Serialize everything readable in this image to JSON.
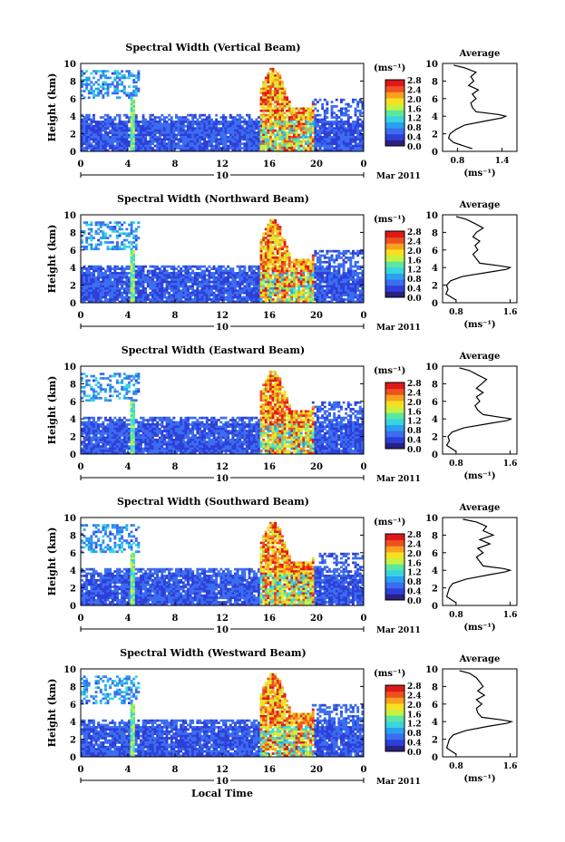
{
  "figure": {
    "x_axis_label": "Local Time",
    "date_label": "10",
    "month_label": "Mar 2011",
    "colorbar_unit": "(ms⁻¹)",
    "profile_title": "Average",
    "profile_xlabel": "(ms⁻¹)",
    "colorbar_colors": [
      "#2a2080",
      "#2d3fd8",
      "#3b6df0",
      "#2aa0f0",
      "#3ad4e0",
      "#5ae8a0",
      "#c8f040",
      "#f8e020",
      "#f8a020",
      "#f05020",
      "#e01818"
    ]
  },
  "chart_data": [
    {
      "type": "heatmap",
      "title": "Spectral Width (Vertical Beam)",
      "ylabel": "Height (km)",
      "xlabel": "Local Time",
      "x_ticks": [
        "0",
        "4",
        "8",
        "12",
        "16",
        "20",
        "0"
      ],
      "y_ticks": [
        "0",
        "2",
        "4",
        "6",
        "8",
        "10"
      ],
      "xlim": [
        0,
        24
      ],
      "ylim": [
        0,
        10
      ],
      "colorbar_ticks": [
        "0.0",
        "0.4",
        "0.8",
        "1.2",
        "1.6",
        "2.0",
        "2.4",
        "2.8"
      ],
      "colorbar_unit": "(ms⁻¹)",
      "profile": {
        "title": "Average",
        "x_ticks": [
          "0.8",
          "1.4"
        ],
        "xlim": [
          0.6,
          1.6
        ],
        "y_ticks": [
          "0",
          "2",
          "4",
          "6",
          "8",
          "10"
        ],
        "heights": [
          0.3,
          1,
          1.5,
          2,
          2.5,
          3,
          3.5,
          3.8,
          4,
          4.2,
          4.5,
          5,
          5.5,
          6,
          6.5,
          7,
          7.5,
          8,
          8.5,
          9,
          9.5,
          9.8
        ],
        "values": [
          1.0,
          0.75,
          0.68,
          0.7,
          0.78,
          0.9,
          1.2,
          1.4,
          1.45,
          1.35,
          1.05,
          1.0,
          0.98,
          1.05,
          1.0,
          1.08,
          0.95,
          1.02,
          0.98,
          1.05,
          0.9,
          0.75
        ]
      }
    },
    {
      "type": "heatmap",
      "title": "Spectral Width (Northward Beam)",
      "ylabel": "Height (km)",
      "xlabel": "Local Time",
      "x_ticks": [
        "0",
        "4",
        "8",
        "12",
        "16",
        "20",
        "0"
      ],
      "y_ticks": [
        "0",
        "2",
        "4",
        "6",
        "8",
        "10"
      ],
      "xlim": [
        0,
        24
      ],
      "ylim": [
        0,
        10
      ],
      "colorbar_ticks": [
        "0.0",
        "0.4",
        "0.8",
        "1.2",
        "1.6",
        "2.0",
        "2.4",
        "2.8"
      ],
      "colorbar_unit": "(ms⁻¹)",
      "profile": {
        "title": "Average",
        "x_ticks": [
          "0.8",
          "1.6"
        ],
        "xlim": [
          0.6,
          1.7
        ],
        "y_ticks": [
          "0",
          "2",
          "4",
          "6",
          "8",
          "10"
        ],
        "heights": [
          0.3,
          1,
          1.5,
          2,
          2.5,
          3,
          3.5,
          3.8,
          4,
          4.2,
          4.5,
          5,
          5.5,
          6,
          6.5,
          7,
          7.5,
          8,
          8.5,
          9,
          9.5,
          9.8
        ],
        "values": [
          0.8,
          0.65,
          0.68,
          0.66,
          0.72,
          0.9,
          1.3,
          1.55,
          1.6,
          1.45,
          1.15,
          1.1,
          1.05,
          1.12,
          1.08,
          1.15,
          1.05,
          1.1,
          1.2,
          1.08,
          0.95,
          0.8
        ]
      }
    },
    {
      "type": "heatmap",
      "title": "Spectral Width (Eastward Beam)",
      "ylabel": "Height (km)",
      "xlabel": "Local Time",
      "x_ticks": [
        "0",
        "4",
        "8",
        "12",
        "16",
        "20",
        "0"
      ],
      "y_ticks": [
        "0",
        "2",
        "4",
        "6",
        "8",
        "10"
      ],
      "xlim": [
        0,
        24
      ],
      "ylim": [
        0,
        10
      ],
      "colorbar_ticks": [
        "0.0",
        "0.4",
        "0.8",
        "1.2",
        "1.6",
        "2.0",
        "2.4",
        "2.8"
      ],
      "colorbar_unit": "(ms⁻¹)",
      "profile": {
        "title": "Average",
        "x_ticks": [
          "0.8",
          "1.6"
        ],
        "xlim": [
          0.6,
          1.7
        ],
        "y_ticks": [
          "0",
          "2",
          "4",
          "6",
          "8",
          "10"
        ],
        "heights": [
          0.3,
          1,
          1.5,
          2,
          2.5,
          3,
          3.5,
          3.8,
          4,
          4.2,
          4.5,
          5,
          5.5,
          6,
          6.5,
          7,
          7.5,
          8,
          8.5,
          9,
          9.5,
          9.8
        ],
        "values": [
          0.8,
          0.66,
          0.7,
          0.68,
          0.74,
          0.92,
          1.3,
          1.55,
          1.62,
          1.45,
          1.2,
          1.12,
          1.08,
          1.15,
          1.1,
          1.2,
          1.1,
          1.18,
          1.25,
          1.12,
          1.0,
          0.85
        ]
      }
    },
    {
      "type": "heatmap",
      "title": "Spectral Width (Southward Beam)",
      "ylabel": "Height (km)",
      "xlabel": "Local Time",
      "x_ticks": [
        "0",
        "4",
        "8",
        "12",
        "16",
        "20",
        "0"
      ],
      "y_ticks": [
        "0",
        "2",
        "4",
        "6",
        "8",
        "10"
      ],
      "xlim": [
        0,
        24
      ],
      "ylim": [
        0,
        10
      ],
      "colorbar_ticks": [
        "0.0",
        "0.4",
        "0.8",
        "1.2",
        "1.6",
        "2.0",
        "2.4",
        "2.8"
      ],
      "colorbar_unit": "(ms⁻¹)",
      "profile": {
        "title": "Average",
        "x_ticks": [
          "0.8",
          "1.6"
        ],
        "xlim": [
          0.6,
          1.7
        ],
        "y_ticks": [
          "0",
          "2",
          "4",
          "6",
          "8",
          "10"
        ],
        "heights": [
          0.3,
          1,
          1.5,
          2,
          2.5,
          3,
          3.5,
          3.8,
          4,
          4.2,
          4.5,
          5,
          5.5,
          6,
          6.5,
          7,
          7.5,
          8,
          8.5,
          9,
          9.5,
          9.8
        ],
        "values": [
          0.8,
          0.66,
          0.68,
          0.7,
          0.75,
          0.95,
          1.3,
          1.52,
          1.6,
          1.5,
          1.2,
          1.15,
          1.1,
          1.2,
          1.12,
          1.3,
          1.15,
          1.35,
          1.2,
          1.25,
          1.1,
          0.9
        ]
      }
    },
    {
      "type": "heatmap",
      "title": "Spectral Width (Westward Beam)",
      "ylabel": "Height (km)",
      "xlabel": "Local Time",
      "x_ticks": [
        "0",
        "4",
        "8",
        "12",
        "16",
        "20",
        "0"
      ],
      "y_ticks": [
        "0",
        "2",
        "4",
        "6",
        "8",
        "10"
      ],
      "xlim": [
        0,
        24
      ],
      "ylim": [
        0,
        10
      ],
      "colorbar_ticks": [
        "0.0",
        "0.4",
        "0.8",
        "1.2",
        "1.6",
        "2.0",
        "2.4",
        "2.8"
      ],
      "colorbar_unit": "(ms⁻¹)",
      "profile": {
        "title": "Average",
        "x_ticks": [
          "0.8",
          "1.6"
        ],
        "xlim": [
          0.6,
          1.7
        ],
        "y_ticks": [
          "0",
          "2",
          "4",
          "6",
          "8",
          "10"
        ],
        "heights": [
          0.3,
          1,
          1.5,
          2,
          2.5,
          3,
          3.5,
          3.8,
          4,
          4.2,
          4.5,
          5,
          5.5,
          6,
          6.5,
          7,
          7.5,
          8,
          8.5,
          9,
          9.5,
          9.8
        ],
        "values": [
          0.8,
          0.66,
          0.68,
          0.7,
          0.76,
          0.95,
          1.3,
          1.55,
          1.62,
          1.48,
          1.18,
          1.12,
          1.1,
          1.18,
          1.1,
          1.22,
          1.12,
          1.2,
          1.15,
          1.1,
          1.0,
          0.85
        ]
      }
    }
  ]
}
